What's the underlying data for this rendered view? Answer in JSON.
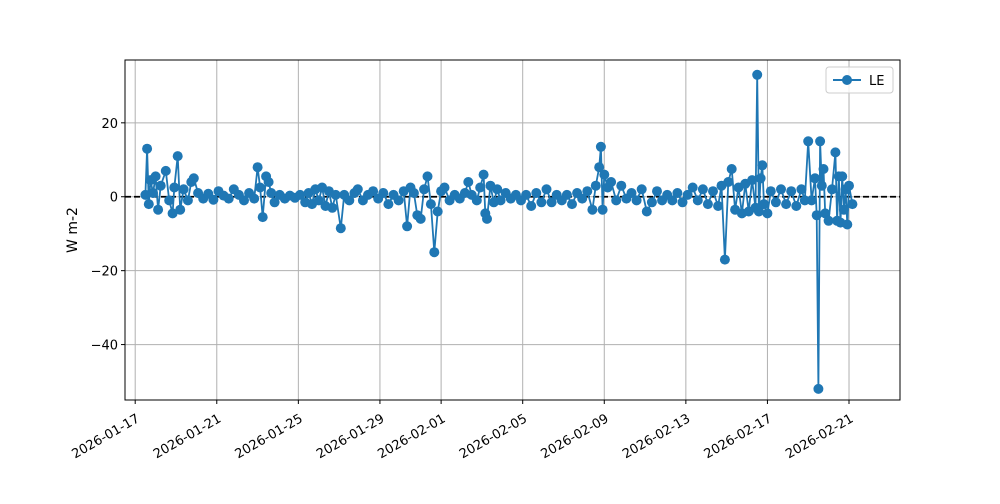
{
  "chart_data": {
    "type": "line",
    "title": "",
    "xlabel": "",
    "ylabel": "W m-2",
    "x_type": "date",
    "xlim": [
      "2026-01-16T12:00",
      "2026-02-23T12:00"
    ],
    "ylim": [
      -55,
      37
    ],
    "x_ticks": [
      "2026-01-17",
      "2026-01-21",
      "2026-01-25",
      "2026-01-29",
      "2026-02-01",
      "2026-02-05",
      "2026-02-09",
      "2026-02-13",
      "2026-02-17",
      "2026-02-21"
    ],
    "y_ticks": [
      -40,
      -20,
      0,
      20
    ],
    "grid": true,
    "legend": {
      "position": "top-right",
      "entries": [
        "LE"
      ]
    },
    "reference_line": {
      "y": 0,
      "style": "dashed",
      "color": "#000000"
    },
    "series": [
      {
        "name": "LE",
        "color": "#1f77b4",
        "marker": "circle",
        "points": [
          [
            "2026-01-17T12:00",
            0.5
          ],
          [
            "2026-01-17T14:00",
            13.0
          ],
          [
            "2026-01-17T16:00",
            -2.0
          ],
          [
            "2026-01-17T18:00",
            4.5
          ],
          [
            "2026-01-17T21:00",
            1.0
          ],
          [
            "2026-01-18T00:00",
            5.5
          ],
          [
            "2026-01-18T03:00",
            -3.5
          ],
          [
            "2026-01-18T06:00",
            3.0
          ],
          [
            "2026-01-18T12:00",
            7.0
          ],
          [
            "2026-01-18T16:00",
            -1.0
          ],
          [
            "2026-01-18T20:00",
            -4.5
          ],
          [
            "2026-01-18T22:00",
            2.5
          ],
          [
            "2026-01-19T02:00",
            11.0
          ],
          [
            "2026-01-19T05:00",
            -3.5
          ],
          [
            "2026-01-19T09:00",
            2.0
          ],
          [
            "2026-01-19T14:00",
            -1.0
          ],
          [
            "2026-01-19T18:00",
            4.0
          ],
          [
            "2026-01-19T21:00",
            5.0
          ],
          [
            "2026-01-20T02:00",
            1.0
          ],
          [
            "2026-01-20T08:00",
            -0.5
          ],
          [
            "2026-01-20T14:00",
            0.8
          ],
          [
            "2026-01-20T20:00",
            -0.8
          ],
          [
            "2026-01-21T02:00",
            1.5
          ],
          [
            "2026-01-21T08:00",
            0.3
          ],
          [
            "2026-01-21T14:00",
            -0.5
          ],
          [
            "2026-01-21T20:00",
            2.0
          ],
          [
            "2026-01-22T02:00",
            0.5
          ],
          [
            "2026-01-22T08:00",
            -1.0
          ],
          [
            "2026-01-22T14:00",
            1.0
          ],
          [
            "2026-01-22T20:00",
            -0.5
          ],
          [
            "2026-01-23T00:00",
            8.0
          ],
          [
            "2026-01-23T03:00",
            2.5
          ],
          [
            "2026-01-23T06:00",
            -5.5
          ],
          [
            "2026-01-23T10:00",
            5.5
          ],
          [
            "2026-01-23T13:00",
            4.0
          ],
          [
            "2026-01-23T16:00",
            1.0
          ],
          [
            "2026-01-23T20:00",
            -1.5
          ],
          [
            "2026-01-24T02:00",
            0.5
          ],
          [
            "2026-01-24T08:00",
            -0.5
          ],
          [
            "2026-01-24T14:00",
            0.3
          ],
          [
            "2026-01-24T20:00",
            -0.3
          ],
          [
            "2026-01-25T02:00",
            0.5
          ],
          [
            "2026-01-25T08:00",
            -1.5
          ],
          [
            "2026-01-25T12:00",
            1.0
          ],
          [
            "2026-01-25T16:00",
            -2.0
          ],
          [
            "2026-01-25T20:00",
            2.0
          ],
          [
            "2026-01-26T00:00",
            -1.0
          ],
          [
            "2026-01-26T04:00",
            2.5
          ],
          [
            "2026-01-26T08:00",
            -2.5
          ],
          [
            "2026-01-26T12:00",
            1.5
          ],
          [
            "2026-01-26T16:00",
            -3.0
          ],
          [
            "2026-01-26T20:00",
            0.5
          ],
          [
            "2026-01-27T02:00",
            -8.5
          ],
          [
            "2026-01-27T06:00",
            0.5
          ],
          [
            "2026-01-27T12:00",
            -1.0
          ],
          [
            "2026-01-27T18:00",
            1.0
          ],
          [
            "2026-01-27T22:00",
            2.0
          ],
          [
            "2026-01-28T04:00",
            -1.0
          ],
          [
            "2026-01-28T10:00",
            0.5
          ],
          [
            "2026-01-28T16:00",
            1.5
          ],
          [
            "2026-01-28T22:00",
            -0.5
          ],
          [
            "2026-01-29T04:00",
            1.0
          ],
          [
            "2026-01-29T10:00",
            -2.0
          ],
          [
            "2026-01-29T16:00",
            0.5
          ],
          [
            "2026-01-29T22:00",
            -1.0
          ],
          [
            "2026-01-30T04:00",
            1.5
          ],
          [
            "2026-01-30T08:00",
            -8.0
          ],
          [
            "2026-01-30T12:00",
            2.5
          ],
          [
            "2026-01-30T16:00",
            1.0
          ],
          [
            "2026-01-30T20:00",
            -5.0
          ],
          [
            "2026-01-31T00:00",
            -6.0
          ],
          [
            "2026-01-31T04:00",
            2.0
          ],
          [
            "2026-01-31T08:00",
            5.5
          ],
          [
            "2026-01-31T12:00",
            -2.0
          ],
          [
            "2026-01-31T16:00",
            -15.0
          ],
          [
            "2026-01-31T20:00",
            -4.0
          ],
          [
            "2026-02-01T00:00",
            1.5
          ],
          [
            "2026-02-01T04:00",
            2.5
          ],
          [
            "2026-02-01T10:00",
            -1.0
          ],
          [
            "2026-02-01T16:00",
            0.5
          ],
          [
            "2026-02-01T22:00",
            -0.5
          ],
          [
            "2026-02-02T04:00",
            1.0
          ],
          [
            "2026-02-02T08:00",
            4.0
          ],
          [
            "2026-02-02T12:00",
            0.5
          ],
          [
            "2026-02-02T18:00",
            -1.0
          ],
          [
            "2026-02-02T22:00",
            2.5
          ],
          [
            "2026-02-03T02:00",
            6.0
          ],
          [
            "2026-02-03T04:00",
            -4.5
          ],
          [
            "2026-02-03T06:00",
            -6.0
          ],
          [
            "2026-02-03T10:00",
            3.0
          ],
          [
            "2026-02-03T14:00",
            -1.5
          ],
          [
            "2026-02-03T18:00",
            2.0
          ],
          [
            "2026-02-03T22:00",
            -1.0
          ],
          [
            "2026-02-04T04:00",
            1.0
          ],
          [
            "2026-02-04T10:00",
            -0.5
          ],
          [
            "2026-02-04T16:00",
            0.5
          ],
          [
            "2026-02-04T22:00",
            -1.0
          ],
          [
            "2026-02-05T04:00",
            0.5
          ],
          [
            "2026-02-05T10:00",
            -2.5
          ],
          [
            "2026-02-05T16:00",
            1.0
          ],
          [
            "2026-02-05T22:00",
            -1.5
          ],
          [
            "2026-02-06T04:00",
            2.0
          ],
          [
            "2026-02-06T10:00",
            -1.5
          ],
          [
            "2026-02-06T16:00",
            0.5
          ],
          [
            "2026-02-06T22:00",
            -1.0
          ],
          [
            "2026-02-07T04:00",
            0.5
          ],
          [
            "2026-02-07T10:00",
            -2.0
          ],
          [
            "2026-02-07T16:00",
            1.0
          ],
          [
            "2026-02-07T22:00",
            -0.5
          ],
          [
            "2026-02-08T04:00",
            1.5
          ],
          [
            "2026-02-08T10:00",
            -3.5
          ],
          [
            "2026-02-08T14:00",
            3.0
          ],
          [
            "2026-02-08T18:00",
            8.0
          ],
          [
            "2026-02-08T20:00",
            13.5
          ],
          [
            "2026-02-08T22:00",
            -3.5
          ],
          [
            "2026-02-09T00:00",
            6.0
          ],
          [
            "2026-02-09T04:00",
            2.5
          ],
          [
            "2026-02-09T08:00",
            4.0
          ],
          [
            "2026-02-09T14:00",
            -1.0
          ],
          [
            "2026-02-09T20:00",
            3.0
          ],
          [
            "2026-02-10T02:00",
            -0.5
          ],
          [
            "2026-02-10T08:00",
            1.0
          ],
          [
            "2026-02-10T14:00",
            -1.0
          ],
          [
            "2026-02-10T20:00",
            2.0
          ],
          [
            "2026-02-11T02:00",
            -4.0
          ],
          [
            "2026-02-11T08:00",
            -1.5
          ],
          [
            "2026-02-11T14:00",
            1.5
          ],
          [
            "2026-02-11T20:00",
            -1.0
          ],
          [
            "2026-02-12T02:00",
            0.5
          ],
          [
            "2026-02-12T08:00",
            -1.0
          ],
          [
            "2026-02-12T14:00",
            1.0
          ],
          [
            "2026-02-12T20:00",
            -1.5
          ],
          [
            "2026-02-13T02:00",
            0.5
          ],
          [
            "2026-02-13T08:00",
            2.5
          ],
          [
            "2026-02-13T14:00",
            -1.0
          ],
          [
            "2026-02-13T20:00",
            2.0
          ],
          [
            "2026-02-14T02:00",
            -2.0
          ],
          [
            "2026-02-14T08:00",
            1.5
          ],
          [
            "2026-02-14T14:00",
            -2.5
          ],
          [
            "2026-02-14T18:00",
            3.0
          ],
          [
            "2026-02-14T22:00",
            -17.0
          ],
          [
            "2026-02-15T02:00",
            4.0
          ],
          [
            "2026-02-15T06:00",
            7.5
          ],
          [
            "2026-02-15T10:00",
            -3.5
          ],
          [
            "2026-02-15T14:00",
            2.5
          ],
          [
            "2026-02-15T18:00",
            -4.5
          ],
          [
            "2026-02-15T22:00",
            3.5
          ],
          [
            "2026-02-16T02:00",
            -4.0
          ],
          [
            "2026-02-16T06:00",
            4.5
          ],
          [
            "2026-02-16T10:00",
            -3.0
          ],
          [
            "2026-02-16T12:00",
            33.0
          ],
          [
            "2026-02-16T14:00",
            -4.0
          ],
          [
            "2026-02-16T16:00",
            5.0
          ],
          [
            "2026-02-16T18:00",
            8.5
          ],
          [
            "2026-02-16T20:00",
            -2.0
          ],
          [
            "2026-02-17T00:00",
            -4.5
          ],
          [
            "2026-02-17T04:00",
            1.5
          ],
          [
            "2026-02-17T10:00",
            -1.5
          ],
          [
            "2026-02-17T16:00",
            2.0
          ],
          [
            "2026-02-17T22:00",
            -2.0
          ],
          [
            "2026-02-18T04:00",
            1.5
          ],
          [
            "2026-02-18T10:00",
            -2.5
          ],
          [
            "2026-02-18T16:00",
            2.0
          ],
          [
            "2026-02-18T20:00",
            -1.0
          ],
          [
            "2026-02-19T00:00",
            15.0
          ],
          [
            "2026-02-19T04:00",
            -1.0
          ],
          [
            "2026-02-19T08:00",
            5.0
          ],
          [
            "2026-02-19T10:00",
            -5.0
          ],
          [
            "2026-02-19T12:00",
            -52.0
          ],
          [
            "2026-02-19T14:00",
            15.0
          ],
          [
            "2026-02-19T16:00",
            3.0
          ],
          [
            "2026-02-19T18:00",
            7.5
          ],
          [
            "2026-02-19T20:00",
            -4.5
          ],
          [
            "2026-02-20T00:00",
            -6.5
          ],
          [
            "2026-02-20T04:00",
            2.0
          ],
          [
            "2026-02-20T08:00",
            12.0
          ],
          [
            "2026-02-20T10:00",
            -6.5
          ],
          [
            "2026-02-20T12:00",
            5.5
          ],
          [
            "2026-02-20T14:00",
            -7.0
          ],
          [
            "2026-02-20T16:00",
            5.5
          ],
          [
            "2026-02-20T18:00",
            -3.5
          ],
          [
            "2026-02-20T20:00",
            2.0
          ],
          [
            "2026-02-20T22:00",
            -7.5
          ],
          [
            "2026-02-21T00:00",
            3.0
          ],
          [
            "2026-02-21T04:00",
            -2.0
          ]
        ]
      }
    ]
  }
}
